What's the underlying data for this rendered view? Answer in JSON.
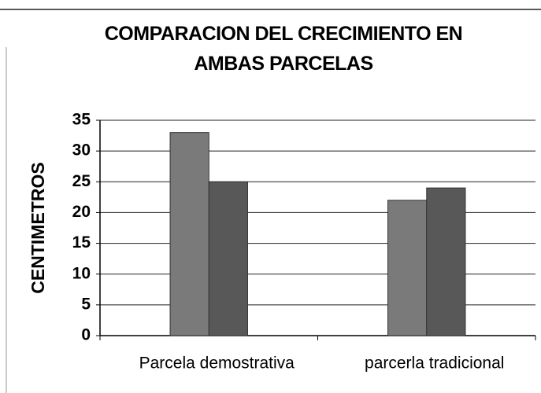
{
  "chart_data": {
    "type": "bar",
    "title": "COMPARACION DEL CRECIMIENTO EN AMBAS PARCELAS",
    "y_label": "CENTIMETROS",
    "categories": [
      "Parcela demostrativa",
      "parcerla tradicional"
    ],
    "series": [
      {
        "color": "#7a7a7a",
        "values": [
          33,
          22
        ]
      },
      {
        "color": "#585858",
        "values": [
          25,
          24
        ]
      }
    ],
    "ylim": [
      0,
      35
    ],
    "yticks": [
      0,
      5,
      10,
      15,
      20,
      25,
      30,
      35
    ],
    "grid": true
  }
}
